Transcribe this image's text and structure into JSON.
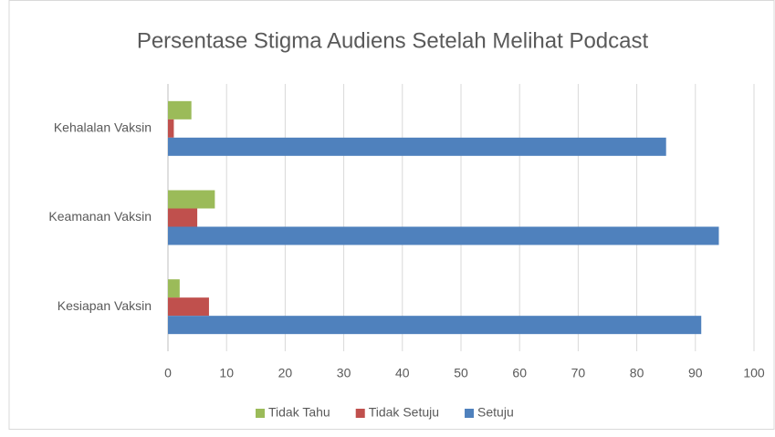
{
  "chart_data": {
    "type": "bar",
    "orientation": "horizontal",
    "title": "Persentase Stigma Audiens Setelah Melihat Podcast",
    "categories": [
      "Kehalalan Vaksin",
      "Keamanan Vaksin",
      "Kesiapan Vaksin"
    ],
    "series": [
      {
        "name": "Tidak Tahu",
        "color": "#9bbb59",
        "values": [
          4,
          8,
          2
        ]
      },
      {
        "name": "Tidak Setuju",
        "color": "#c0504d",
        "values": [
          1,
          5,
          7
        ]
      },
      {
        "name": "Setuju",
        "color": "#4f81bd",
        "values": [
          85,
          94,
          91
        ]
      }
    ],
    "xlim": [
      0,
      100
    ],
    "xticks": [
      0,
      10,
      20,
      30,
      40,
      50,
      60,
      70,
      80,
      90,
      100
    ],
    "grid": true,
    "legend": "bottom"
  }
}
